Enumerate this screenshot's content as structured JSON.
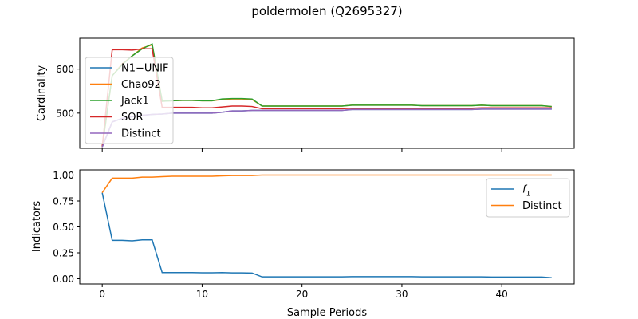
{
  "figure": {
    "title": "poldermolen (Q2695327)",
    "xlabel": "Sample Periods"
  },
  "chart_data": [
    {
      "type": "line",
      "ylabel": "Cardinality",
      "xlim": [
        -2.25,
        47.25
      ],
      "ylim": [
        420,
        670
      ],
      "xticks": [
        0,
        10,
        20,
        30,
        40
      ],
      "yticks": [
        500,
        600
      ],
      "show_x_tick_labels": false,
      "grid": false,
      "legend_position": "left",
      "x": [
        0,
        1,
        2,
        3,
        4,
        5,
        6,
        7,
        8,
        9,
        10,
        11,
        12,
        13,
        14,
        15,
        16,
        17,
        18,
        19,
        20,
        21,
        22,
        23,
        24,
        25,
        26,
        27,
        28,
        29,
        30,
        31,
        32,
        33,
        34,
        35,
        36,
        37,
        38,
        39,
        40,
        41,
        42,
        43,
        44,
        45
      ],
      "series": [
        {
          "name": "N1−UNIF",
          "color": "#1f77b4",
          "values": [
            423,
            480,
            488,
            492,
            495,
            497,
            498,
            500,
            500,
            500,
            500,
            500,
            502,
            505,
            505,
            506,
            506,
            506,
            506,
            506,
            506,
            506,
            506,
            506,
            506,
            508,
            508,
            508,
            508,
            508,
            508,
            508,
            508,
            508,
            508,
            508,
            508,
            508,
            509,
            509,
            509,
            509,
            509,
            509,
            509,
            509
          ]
        },
        {
          "name": "Chao92",
          "color": "#ff7f0e",
          "values": [
            423,
            585,
            612,
            630,
            648,
            655,
            527,
            528,
            529,
            529,
            528,
            528,
            531,
            532,
            532,
            531,
            516,
            516,
            516,
            516,
            516,
            516,
            516,
            516,
            516,
            518,
            518,
            518,
            518,
            518,
            518,
            518,
            517,
            517,
            517,
            517,
            517,
            517,
            518,
            517,
            517,
            517,
            517,
            517,
            517,
            515
          ]
        },
        {
          "name": "Jack1",
          "color": "#2ca02c",
          "values": [
            423,
            585,
            610,
            630,
            646,
            657,
            527,
            528,
            529,
            529,
            528,
            528,
            532,
            533,
            533,
            532,
            516,
            516,
            516,
            516,
            516,
            516,
            516,
            516,
            516,
            518,
            518,
            518,
            518,
            518,
            518,
            518,
            517,
            517,
            517,
            517,
            517,
            517,
            518,
            517,
            517,
            517,
            517,
            517,
            517,
            515
          ]
        },
        {
          "name": "SOR",
          "color": "#d62728",
          "values": [
            423,
            644,
            644,
            643,
            646,
            646,
            513,
            513,
            513,
            513,
            512,
            512,
            514,
            516,
            516,
            515,
            510,
            510,
            510,
            510,
            510,
            510,
            510,
            510,
            510,
            511,
            511,
            511,
            511,
            511,
            511,
            511,
            511,
            511,
            511,
            511,
            511,
            511,
            512,
            512,
            512,
            512,
            512,
            512,
            512,
            512
          ]
        },
        {
          "name": "Distinct",
          "color": "#9467bd",
          "values": [
            423,
            480,
            488,
            492,
            495,
            497,
            498,
            500,
            500,
            500,
            500,
            500,
            502,
            505,
            505,
            506,
            506,
            506,
            506,
            506,
            506,
            506,
            506,
            506,
            506,
            508,
            508,
            508,
            508,
            508,
            508,
            508,
            508,
            508,
            508,
            508,
            508,
            508,
            509,
            509,
            509,
            509,
            509,
            509,
            509,
            509
          ]
        }
      ]
    },
    {
      "type": "line",
      "ylabel": "Indicators",
      "xlim": [
        -2.25,
        47.25
      ],
      "ylim": [
        -0.05,
        1.05
      ],
      "xticks": [
        0,
        10,
        20,
        30,
        40
      ],
      "yticks": [
        0.0,
        0.25,
        0.5,
        0.75,
        1.0
      ],
      "ytick_labels": [
        "0.00",
        "0.25",
        "0.50",
        "0.75",
        "1.00"
      ],
      "xtick_labels": [
        "0",
        "10",
        "20",
        "30",
        "40"
      ],
      "grid": false,
      "legend_position": "upper right",
      "x": [
        0,
        1,
        2,
        3,
        4,
        5,
        6,
        7,
        8,
        9,
        10,
        11,
        12,
        13,
        14,
        15,
        16,
        17,
        18,
        19,
        20,
        21,
        22,
        23,
        24,
        25,
        26,
        27,
        28,
        29,
        30,
        31,
        32,
        33,
        34,
        35,
        36,
        37,
        38,
        39,
        40,
        41,
        42,
        43,
        44,
        45
      ],
      "series": [
        {
          "name": "f1",
          "color": "#1f77b4",
          "values": [
            0.83,
            0.37,
            0.37,
            0.365,
            0.375,
            0.375,
            0.06,
            0.06,
            0.06,
            0.06,
            0.058,
            0.058,
            0.06,
            0.057,
            0.057,
            0.055,
            0.018,
            0.018,
            0.018,
            0.018,
            0.018,
            0.018,
            0.018,
            0.018,
            0.018,
            0.02,
            0.02,
            0.02,
            0.02,
            0.02,
            0.02,
            0.02,
            0.018,
            0.018,
            0.018,
            0.018,
            0.018,
            0.018,
            0.018,
            0.016,
            0.016,
            0.016,
            0.016,
            0.016,
            0.016,
            0.01
          ]
        },
        {
          "name": "Distinct",
          "color": "#ff7f0e",
          "values": [
            0.83,
            0.97,
            0.97,
            0.97,
            0.98,
            0.98,
            0.985,
            0.988,
            0.988,
            0.988,
            0.988,
            0.988,
            0.992,
            0.995,
            0.995,
            0.995,
            1.0,
            1.0,
            1.0,
            1.0,
            1.0,
            1.0,
            1.0,
            1.0,
            1.0,
            1.0,
            1.0,
            1.0,
            1.0,
            1.0,
            1.0,
            1.0,
            1.0,
            1.0,
            1.0,
            1.0,
            1.0,
            1.0,
            1.0,
            1.0,
            1.0,
            1.0,
            1.0,
            1.0,
            1.0,
            1.0
          ]
        }
      ]
    }
  ]
}
